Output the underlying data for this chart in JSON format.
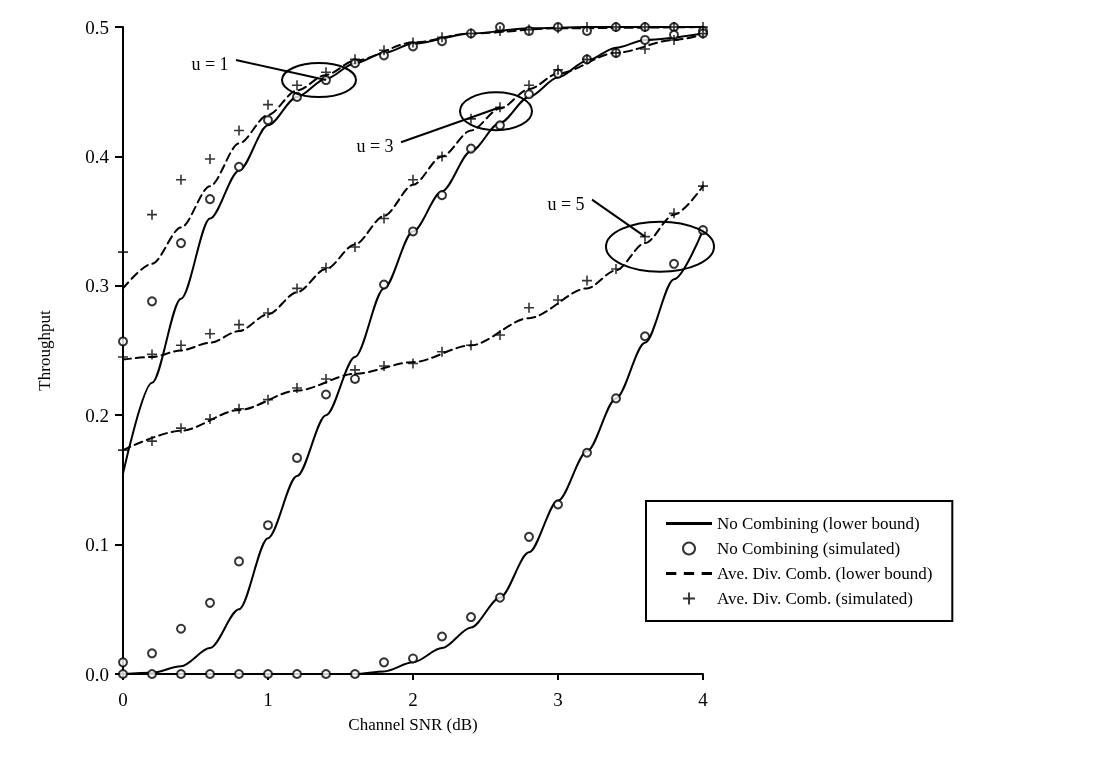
{
  "chart_data": {
    "type": "line",
    "xlabel": "Channel SNR (dB)",
    "ylabel": "Throughput",
    "xlim": [
      0,
      4
    ],
    "xticks": [
      0,
      1,
      2,
      3,
      4
    ],
    "ylim": [
      0,
      0.5
    ],
    "yticks": [
      {
        "value": 0,
        "label": "0.0"
      },
      {
        "value": 0.1,
        "label": "0.1"
      },
      {
        "value": 0.2,
        "label": "0.2"
      },
      {
        "value": 0.3,
        "label": "0.3"
      },
      {
        "value": 0.4,
        "label": "0.4"
      },
      {
        "value": 0.5,
        "label": "0.5"
      }
    ],
    "grid": false,
    "legend": "bottom right",
    "annotations": [
      {
        "text": "u = 1",
        "x": 1.4,
        "y": 0.459
      },
      {
        "text": "u = 3",
        "x": 2.6,
        "y": 0.438
      },
      {
        "text": "u = 5",
        "x": 3.6,
        "y": 0.338
      }
    ],
    "series": [
      {
        "name": "No Combining (lower bound)",
        "type": "line",
        "line_style": "solid",
        "marker": "none",
        "color": "#000000",
        "x": [
          0,
          0.2,
          0.4,
          0.6,
          0.8,
          1.0,
          1.2,
          1.4,
          1.6,
          1.8,
          2.0,
          2.4,
          2.8,
          3.2,
          4.0
        ],
        "values": [
          0.155,
          0.225,
          0.29,
          0.352,
          0.389,
          0.424,
          0.446,
          0.46,
          0.472,
          0.48,
          0.487,
          0.495,
          0.499,
          0.5,
          0.5
        ]
      },
      {
        "name": "No Combining (simulated)",
        "type": "scatter",
        "marker": "circle",
        "color": "#000000",
        "x": [
          0,
          0.2,
          0.4,
          0.6,
          0.8,
          1.0,
          1.2,
          1.4,
          1.6,
          1.8,
          2.0,
          2.2,
          2.4,
          2.6,
          2.8,
          3.0,
          3.2,
          3.4,
          3.6,
          3.8,
          4.0
        ],
        "values": [
          0.257,
          0.288,
          0.333,
          0.367,
          0.392,
          0.428,
          0.446,
          0.459,
          0.472,
          0.478,
          0.485,
          0.489,
          0.495,
          0.5,
          0.497,
          0.5,
          0.497,
          0.5,
          0.5,
          0.5,
          0.497
        ]
      },
      {
        "name": "Ave. Div. Comb. (lower bound)",
        "type": "line",
        "line_style": "dashed",
        "marker": "none",
        "color": "#000000",
        "x": [
          0,
          0.2,
          0.4,
          0.6,
          0.8,
          1.0,
          1.2,
          1.4,
          1.6,
          2.0,
          2.4,
          3.0,
          4.0
        ],
        "values": [
          0.298,
          0.317,
          0.345,
          0.377,
          0.41,
          0.432,
          0.451,
          0.463,
          0.474,
          0.488,
          0.495,
          0.499,
          0.5
        ]
      },
      {
        "name": "Ave. Div. Comb. (simulated)",
        "type": "scatter",
        "marker": "cross",
        "color": "#000000",
        "x": [
          0,
          0.2,
          0.4,
          0.6,
          0.8,
          1.0,
          1.2,
          1.4,
          1.6,
          1.8,
          2.0,
          2.2,
          2.4,
          2.6,
          2.8,
          3.0,
          3.2,
          3.4,
          3.6,
          3.8,
          4.0
        ],
        "values": [
          0.326,
          0.355,
          0.382,
          0.398,
          0.42,
          0.44,
          0.455,
          0.465,
          0.475,
          0.482,
          0.488,
          0.492,
          0.495,
          0.497,
          0.498,
          0.499,
          0.5,
          0.5,
          0.5,
          0.5,
          0.5
        ]
      },
      {
        "type": "line",
        "line_style": "solid",
        "marker": "none",
        "color": "#000000",
        "x": [
          0,
          0.2,
          0.4,
          0.6,
          0.8,
          1.0,
          1.2,
          1.4,
          1.6,
          1.8,
          2.0,
          2.2,
          2.4,
          2.6,
          2.8,
          3.0,
          3.2,
          3.4,
          3.6,
          4.0
        ],
        "values": [
          0,
          0.001,
          0.006,
          0.02,
          0.05,
          0.105,
          0.153,
          0.2,
          0.245,
          0.298,
          0.342,
          0.373,
          0.404,
          0.426,
          0.446,
          0.461,
          0.474,
          0.484,
          0.49,
          0.495
        ]
      },
      {
        "type": "scatter",
        "marker": "circle",
        "color": "#000000",
        "x": [
          0,
          0.2,
          0.4,
          0.6,
          0.8,
          1.0,
          1.2,
          1.4,
          1.6,
          1.8,
          2.0,
          2.2,
          2.4,
          2.6,
          2.8,
          3.0,
          3.2,
          3.4,
          3.6,
          3.8,
          4.0
        ],
        "values": [
          0.009,
          0.016,
          0.035,
          0.055,
          0.087,
          0.115,
          0.167,
          0.216,
          0.228,
          0.301,
          0.342,
          0.37,
          0.406,
          0.424,
          0.448,
          0.464,
          0.475,
          0.48,
          0.49,
          0.494,
          0.495
        ]
      },
      {
        "type": "line",
        "line_style": "dashed",
        "marker": "none",
        "color": "#000000",
        "x": [
          0,
          0.2,
          0.4,
          0.6,
          0.8,
          1.0,
          1.2,
          1.4,
          1.6,
          1.8,
          2.0,
          2.2,
          2.4,
          2.6,
          2.8,
          3.0,
          3.4,
          3.8,
          4.0
        ],
        "values": [
          0.243,
          0.245,
          0.25,
          0.256,
          0.265,
          0.278,
          0.295,
          0.313,
          0.332,
          0.354,
          0.378,
          0.4,
          0.42,
          0.437,
          0.452,
          0.464,
          0.48,
          0.49,
          0.494
        ]
      },
      {
        "type": "scatter",
        "marker": "cross",
        "color": "#000000",
        "x": [
          0,
          0.2,
          0.4,
          0.6,
          0.8,
          1.0,
          1.2,
          1.4,
          1.6,
          1.8,
          2.0,
          2.2,
          2.4,
          2.6,
          2.8,
          3.0,
          3.2,
          3.4,
          3.6,
          3.8,
          4.0
        ],
        "values": [
          0.245,
          0.247,
          0.254,
          0.263,
          0.27,
          0.279,
          0.298,
          0.314,
          0.33,
          0.352,
          0.382,
          0.4,
          0.429,
          0.438,
          0.455,
          0.467,
          0.475,
          0.48,
          0.483,
          0.49,
          0.495
        ]
      },
      {
        "type": "line",
        "line_style": "solid",
        "marker": "none",
        "color": "#000000",
        "x": [
          0,
          1.6,
          1.8,
          2.0,
          2.2,
          2.4,
          2.6,
          2.8,
          3.0,
          3.2,
          3.4,
          3.6,
          3.8,
          4.0
        ],
        "values": [
          0,
          0,
          0.002,
          0.009,
          0.02,
          0.036,
          0.059,
          0.094,
          0.134,
          0.172,
          0.213,
          0.256,
          0.305,
          0.343
        ]
      },
      {
        "type": "scatter",
        "marker": "circle",
        "color": "#000000",
        "x": [
          0,
          0.2,
          0.4,
          0.6,
          0.8,
          1.0,
          1.2,
          1.4,
          1.6,
          1.8,
          2.0,
          2.2,
          2.4,
          2.6,
          2.8,
          3.0,
          3.2,
          3.4,
          3.6,
          3.8,
          4.0
        ],
        "values": [
          0,
          0,
          0,
          0,
          0,
          0,
          0,
          0,
          0,
          0.009,
          0.012,
          0.029,
          0.044,
          0.059,
          0.106,
          0.131,
          0.171,
          0.213,
          0.261,
          0.317,
          0.343
        ]
      },
      {
        "type": "line",
        "line_style": "dashed",
        "marker": "none",
        "color": "#000000",
        "x": [
          0,
          0.4,
          0.8,
          1.2,
          1.6,
          2.0,
          2.4,
          2.8,
          3.2,
          3.4,
          3.6,
          3.8,
          4.0
        ],
        "values": [
          0.173,
          0.188,
          0.204,
          0.219,
          0.232,
          0.241,
          0.254,
          0.275,
          0.298,
          0.312,
          0.333,
          0.355,
          0.377
        ]
      },
      {
        "type": "scatter",
        "marker": "cross",
        "color": "#000000",
        "x": [
          0,
          0.2,
          0.4,
          0.6,
          0.8,
          1.0,
          1.2,
          1.4,
          1.6,
          1.8,
          2.0,
          2.2,
          2.4,
          2.6,
          2.8,
          3.0,
          3.2,
          3.4,
          3.6,
          3.8,
          4.0
        ],
        "values": [
          0.173,
          0.18,
          0.19,
          0.197,
          0.205,
          0.212,
          0.221,
          0.228,
          0.235,
          0.238,
          0.24,
          0.249,
          0.254,
          0.262,
          0.283,
          0.289,
          0.304,
          0.313,
          0.338,
          0.356,
          0.377
        ]
      }
    ]
  }
}
